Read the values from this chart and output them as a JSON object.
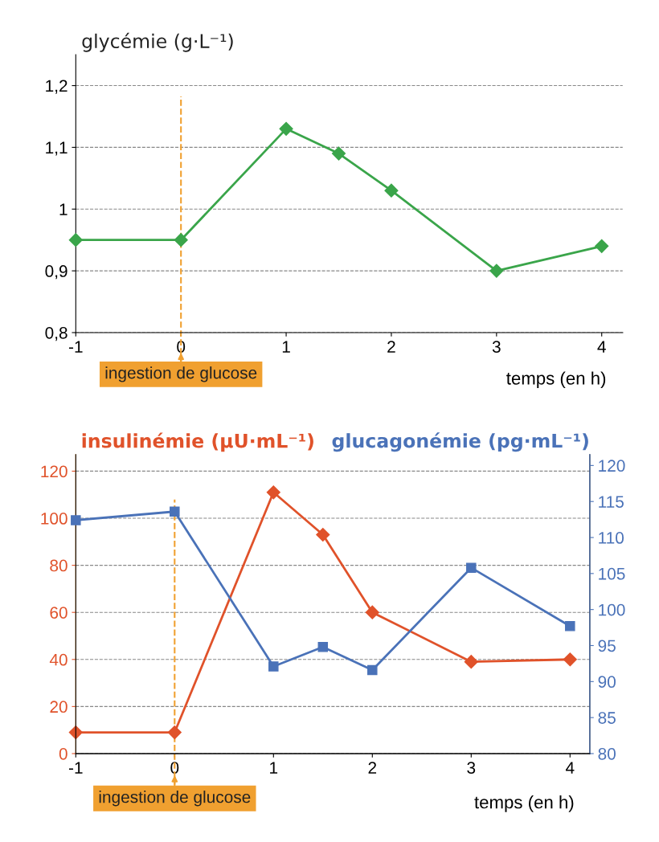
{
  "chart_data": [
    {
      "type": "line",
      "ylabel": "glycémie (g·L⁻¹)",
      "xlabel": "temps (en h)",
      "x": [
        -1,
        0,
        1,
        1.5,
        2,
        3,
        4
      ],
      "series": [
        {
          "color": "#3aa54a",
          "values": [
            0.95,
            0.95,
            1.13,
            1.09,
            1.03,
            0.9,
            0.94
          ],
          "marker": "diamond"
        }
      ],
      "xlim": [
        -1,
        4.2
      ],
      "xticks": [
        -1,
        0,
        1,
        2,
        3,
        4
      ],
      "ylim": [
        0.8,
        1.25
      ],
      "yticks": [
        {
          "value": 0.8,
          "label": "0,8"
        },
        {
          "value": 0.9,
          "label": "0,9"
        },
        {
          "value": 1,
          "label": "1"
        },
        {
          "value": 1.1,
          "label": "1,1"
        },
        {
          "value": 1.2,
          "label": "1,2"
        }
      ],
      "grid": "y",
      "legend": false,
      "ref_lines": [
        {
          "axis": "x",
          "value": 0,
          "label": "ingestion de glucose",
          "color": "#f0a030",
          "line_style": "dashed"
        }
      ]
    },
    {
      "type": "line",
      "ylabel": "insulinémie (µU·mL⁻¹)",
      "y2label": "glucagonémie (pg·mL⁻¹)",
      "xlabel": "temps (en h)",
      "x": [
        -1,
        0,
        1,
        1.5,
        2,
        3,
        4
      ],
      "series": [
        {
          "color": "#e0522a",
          "values": [
            9,
            9,
            111,
            93,
            60,
            39,
            40
          ],
          "marker": "diamond"
        },
        {
          "color": "#4a72b8",
          "values": [
            112.4,
            113.6,
            92.1,
            94.8,
            91.6,
            105.8,
            97.7
          ],
          "marker": "square",
          "axis": "y2"
        }
      ],
      "xlim": [
        -1,
        4.2
      ],
      "xticks": [
        -1,
        0,
        1,
        2,
        3,
        4
      ],
      "ylim": [
        0,
        127
      ],
      "yticks": [
        0,
        20,
        40,
        60,
        80,
        100,
        120
      ],
      "y2lim": [
        80,
        121.5
      ],
      "y2ticks": [
        80,
        85,
        90,
        95,
        100,
        105,
        110,
        115,
        120
      ],
      "grid": "y",
      "legend": false,
      "ref_lines": [
        {
          "axis": "x",
          "value": 0,
          "label": "ingestion de glucose",
          "color": "#f0a030",
          "line_style": "dashed"
        }
      ]
    }
  ]
}
